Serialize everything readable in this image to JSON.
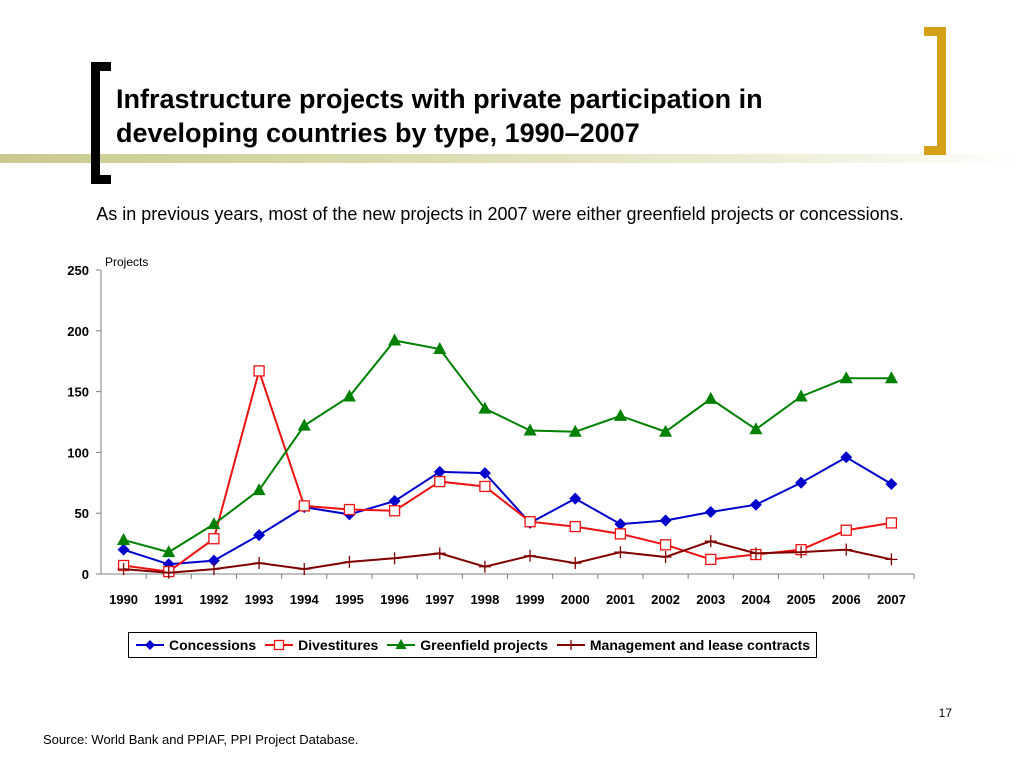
{
  "slide": {
    "title_line1": "Infrastructure projects with private participation in",
    "title_line2": "developing countries by type, 1990–2007",
    "subtitle": "As in previous years, most of the new projects in 2007 were either greenfield projects or concessions.",
    "page_number": "17",
    "source": "Source: World Bank and PPIAF, PPI Project Database."
  },
  "colors": {
    "title_bracket": "#000000",
    "accent_bracket": "#d4a017",
    "band": "#c9c98f"
  },
  "chart_data": {
    "type": "line",
    "ylabel": "Projects",
    "ylim": [
      0,
      250
    ],
    "yticks": [
      0,
      50,
      100,
      150,
      200,
      250
    ],
    "grid": false,
    "legend_position": "bottom",
    "categories": [
      "1990",
      "1991",
      "1992",
      "1993",
      "1994",
      "1995",
      "1996",
      "1997",
      "1998",
      "1999",
      "2000",
      "2001",
      "2002",
      "2003",
      "2004",
      "2005",
      "2006",
      "2007"
    ],
    "series": [
      {
        "name": "Concessions",
        "color": "#0000cc",
        "marker": "diamond",
        "values": [
          20,
          8,
          11,
          32,
          55,
          49,
          60,
          84,
          83,
          42,
          62,
          41,
          44,
          51,
          57,
          75,
          96,
          74
        ]
      },
      {
        "name": "Divestitures",
        "color": "#ee1111",
        "marker": "square-open",
        "values": [
          7,
          2,
          29,
          167,
          56,
          53,
          52,
          76,
          72,
          43,
          39,
          33,
          24,
          12,
          16,
          20,
          36,
          42
        ]
      },
      {
        "name": "Greenfield projects",
        "color": "#008000",
        "marker": "triangle",
        "values": [
          28,
          18,
          41,
          69,
          122,
          146,
          192,
          185,
          136,
          118,
          117,
          130,
          117,
          144,
          119,
          146,
          161,
          161
        ]
      },
      {
        "name": "Management and lease contracts",
        "color": "#800000",
        "marker": "plus",
        "values": [
          4,
          1,
          4,
          9,
          4,
          10,
          13,
          17,
          6,
          15,
          9,
          18,
          14,
          27,
          17,
          18,
          20,
          12
        ]
      }
    ]
  }
}
